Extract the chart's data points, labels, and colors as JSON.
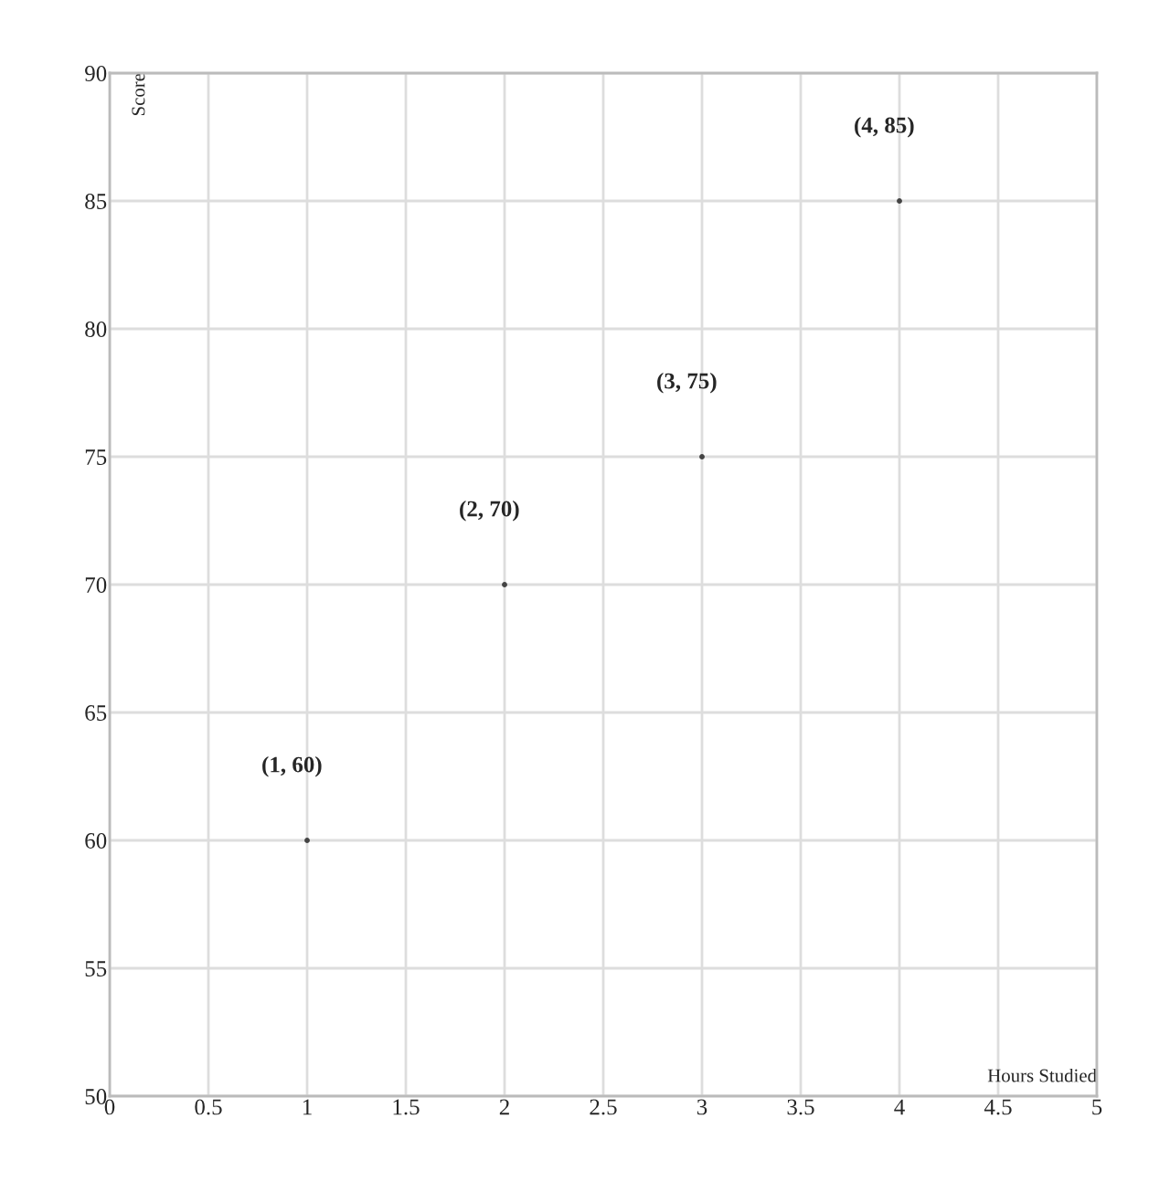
{
  "chart_data": {
    "type": "scatter",
    "xlabel": "Hours Studied",
    "ylabel": "Score",
    "x": [
      1,
      2,
      3,
      4
    ],
    "series": [
      {
        "color": "#444444",
        "values": [
          60,
          70,
          75,
          85
        ],
        "value_labels": [
          "(1, 60)",
          "(2, 70)",
          "(3, 75)",
          "(4, 85)"
        ]
      }
    ],
    "xlim": [
      0,
      5
    ],
    "xticks": [
      0,
      0.5,
      1,
      1.5,
      2,
      2.5,
      3,
      3.5,
      4,
      4.5,
      5
    ],
    "ylim": [
      50,
      90
    ],
    "yticks": [
      50,
      55,
      60,
      65,
      70,
      75,
      80,
      85,
      90
    ],
    "grid": true,
    "marker": "circle"
  }
}
